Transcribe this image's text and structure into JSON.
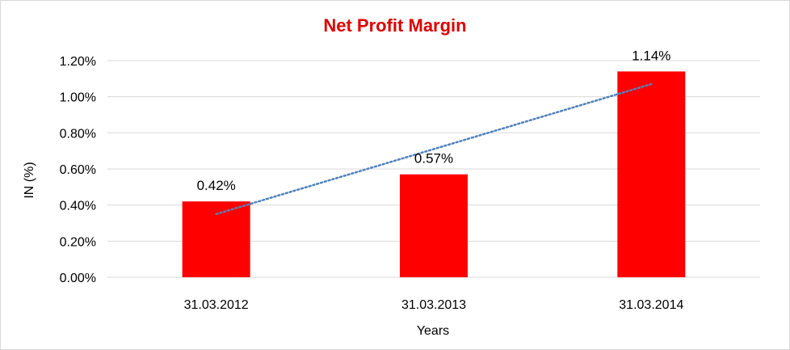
{
  "chart_data": {
    "type": "bar",
    "title": "Net Profit Margin",
    "xlabel": "Years",
    "ylabel": "IN (%)",
    "categories": [
      "31.03.2012",
      "31.03.2013",
      "31.03.2014"
    ],
    "values": [
      0.42,
      0.57,
      1.14
    ],
    "data_labels": [
      "0.42%",
      "0.57%",
      "1.14%"
    ],
    "ylim": [
      0,
      1.2
    ],
    "y_ticks": [
      0,
      0.2,
      0.4,
      0.6,
      0.8,
      1.0,
      1.2
    ],
    "y_tick_labels": [
      "0.00%",
      "0.20%",
      "0.40%",
      "0.60%",
      "0.80%",
      "1.00%",
      "1.20%"
    ],
    "grid": true,
    "legend": "none",
    "trendline": {
      "type": "linear",
      "style": "dotted",
      "start_value": 0.35,
      "end_value": 1.07
    },
    "colors": {
      "bar": "#ff0000",
      "title": "#e00000",
      "trendline": "#4f81bd",
      "grid": "#d9d9d9"
    }
  }
}
